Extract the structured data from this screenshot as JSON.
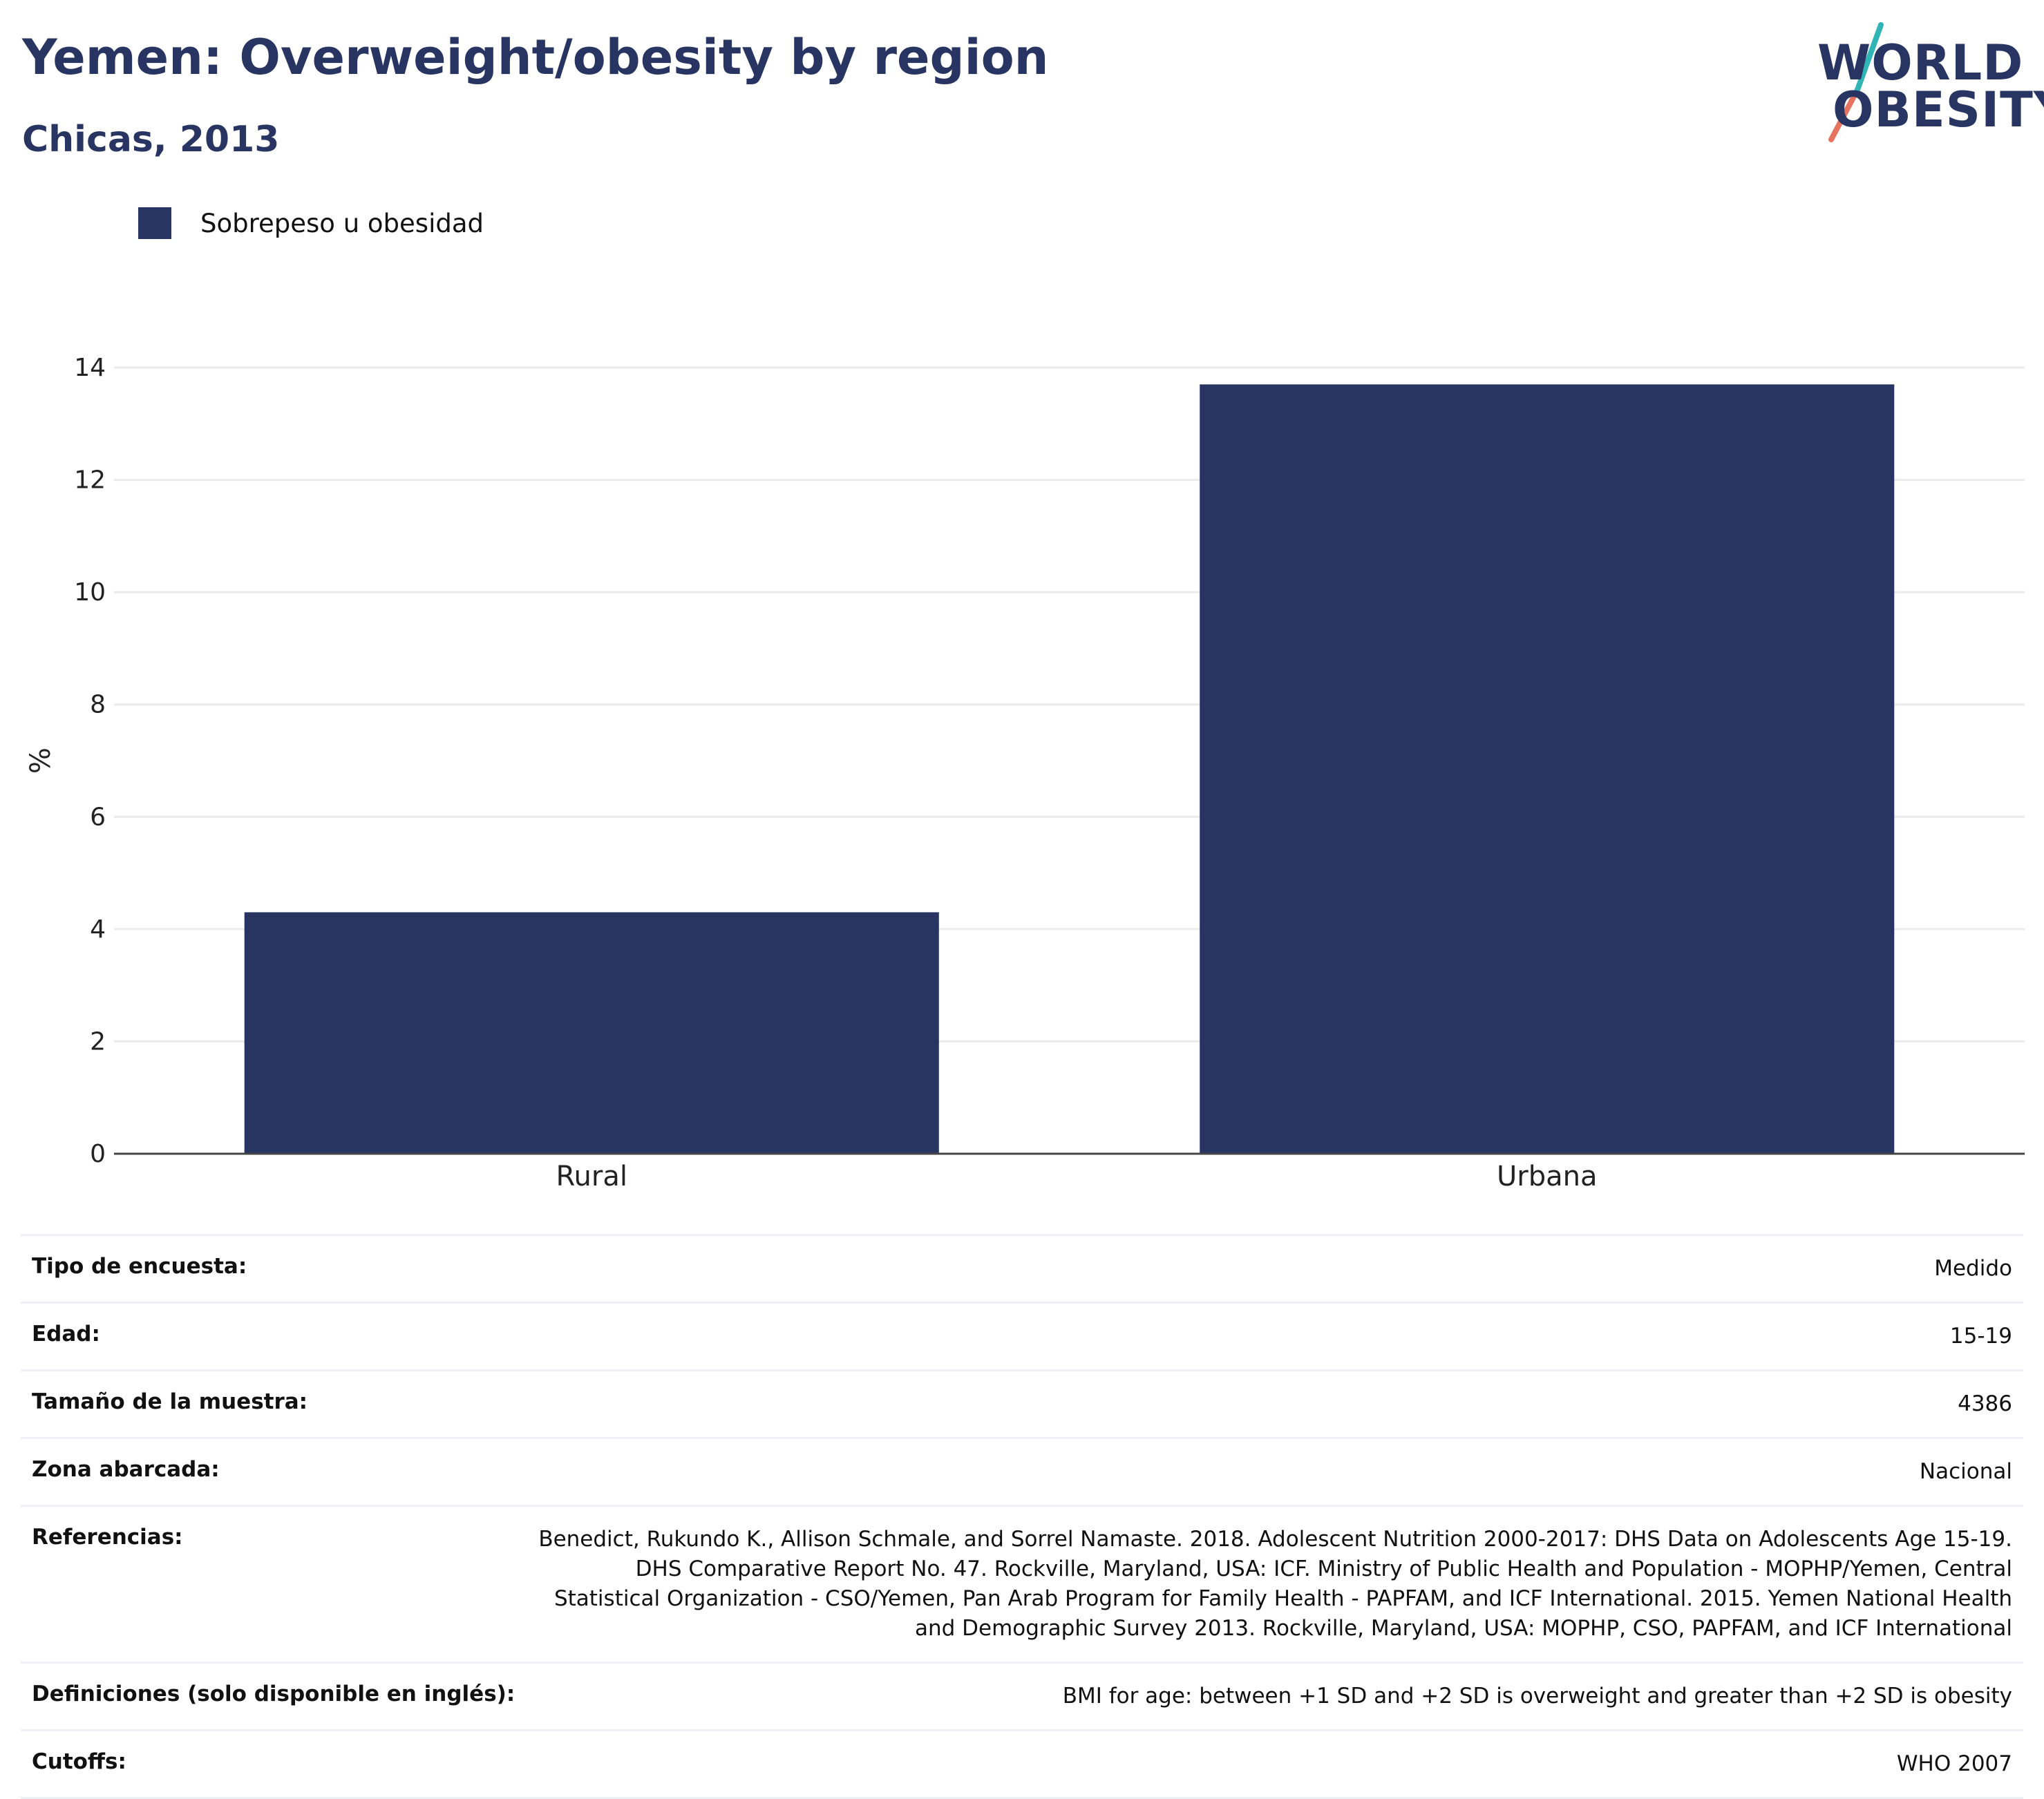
{
  "header": {
    "title": "Yemen: Overweight/obesity by region",
    "subtitle": "Chicas, 2013"
  },
  "logo": {
    "line1": "WORLD",
    "line2": "OBESITY",
    "colors": {
      "navy": "#283562",
      "teal": "#2fb5b5",
      "coral": "#e5735f"
    }
  },
  "colors": {
    "bar": "#283562",
    "grid": "#ebebeb",
    "axis": "#444444"
  },
  "chart_data": {
    "type": "bar",
    "categories": [
      "Rural",
      "Urbana"
    ],
    "series": [
      {
        "name": "Sobrepeso u obesidad",
        "values": [
          4.3,
          13.7
        ]
      }
    ],
    "ylabel": "%",
    "xlabel": "",
    "ylim": [
      0,
      14
    ],
    "yticks": [
      "0",
      "2",
      "4",
      "6",
      "8",
      "10",
      "12",
      "14"
    ],
    "grid": true,
    "legend_position": "top-left"
  },
  "info_table": [
    {
      "key": "Tipo de encuesta:",
      "value": "Medido"
    },
    {
      "key": "Edad:",
      "value": "15-19"
    },
    {
      "key": "Tamaño de la muestra:",
      "value": "4386"
    },
    {
      "key": "Zona abarcada:",
      "value": "Nacional"
    },
    {
      "key": "Referencias:",
      "value": "Benedict, Rukundo K., Allison Schmale, and Sorrel Namaste. 2018. Adolescent Nutrition 2000-2017: DHS Data on Adolescents Age 15-19. DHS Comparative Report No. 47. Rockville, Maryland, USA: ICF. Ministry of Public Health and Population - MOPHP/Yemen, Central Statistical Organization - CSO/Yemen, Pan Arab Program for Family Health - PAPFAM, and ICF International. 2015. Yemen National Health and Demographic Survey 2013. Rockville, Maryland, USA: MOPHP, CSO, PAPFAM, and ICF International"
    },
    {
      "key": "Definiciones (solo disponible en inglés):",
      "value": "BMI for age: between +1 SD and +2 SD is overweight and greater than +2 SD is obesity"
    },
    {
      "key": "Cutoffs:",
      "value": "WHO 2007"
    }
  ]
}
